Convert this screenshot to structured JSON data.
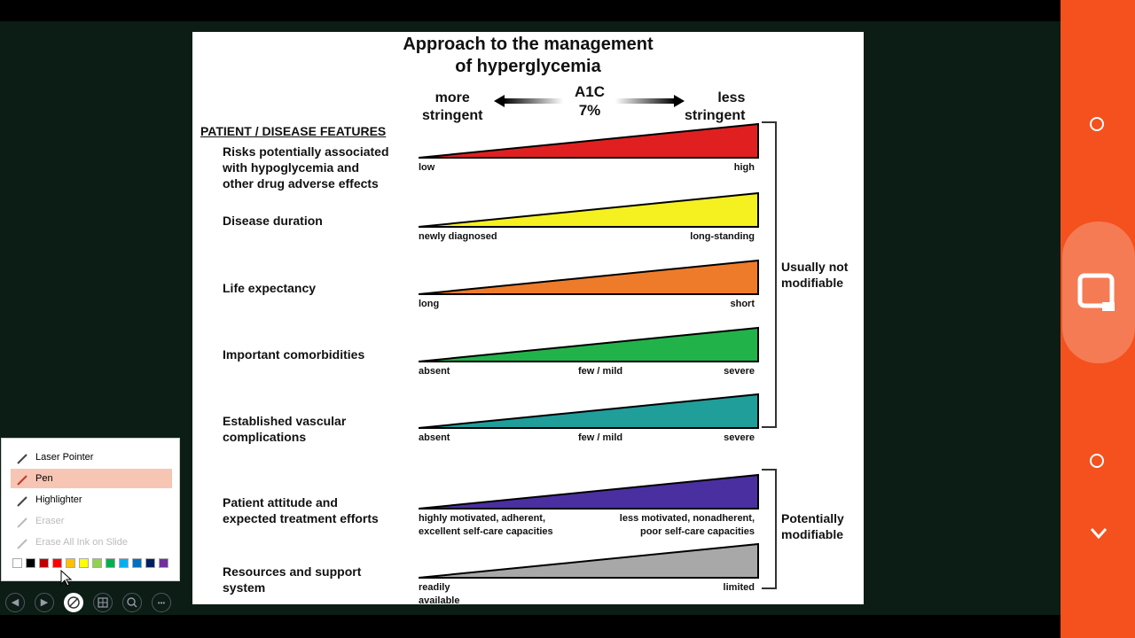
{
  "slide": {
    "title_line1": "Approach to the management",
    "title_line2": "of hyperglycemia",
    "more_line1": "more",
    "more_line2": "stringent",
    "less_line1": "less",
    "less_line2": "stringent",
    "a1c_label": "A1C",
    "a1c_value": "7%",
    "features_header": "PATIENT / DISEASE FEATURES",
    "features": [
      {
        "name_lines": [
          "Risks potentially associated",
          "with hypoglycemia and",
          "other drug adverse effects"
        ],
        "color": "#e02020",
        "left": "low",
        "mid": "",
        "right": "high"
      },
      {
        "name_lines": [
          "Disease duration"
        ],
        "color": "#f5f020",
        "left": "newly diagnosed",
        "mid": "",
        "right": "long-standing"
      },
      {
        "name_lines": [
          "Life expectancy"
        ],
        "color": "#ee7b2a",
        "left": "long",
        "mid": "",
        "right": "short"
      },
      {
        "name_lines": [
          "Important comorbidities"
        ],
        "color": "#22b24a",
        "left": "absent",
        "mid": "few / mild",
        "right": "severe"
      },
      {
        "name_lines": [
          "Established vascular",
          "complications"
        ],
        "color": "#1f9e9a",
        "left": "absent",
        "mid": "few / mild",
        "right": "severe"
      },
      {
        "name_lines": [
          "Patient attitude and",
          "expected treatment efforts"
        ],
        "color": "#4a2fa0",
        "left": "highly motivated, adherent,",
        "left2": "excellent self-care capacities",
        "right": "less motivated, nonadherent,",
        "right2": "poor self-care capacities"
      },
      {
        "name_lines": [
          "Resources and support",
          "system"
        ],
        "color": "#a8a8a8",
        "left": "readily",
        "left2": "available",
        "right": "limited"
      }
    ],
    "usually_not_line1": "Usually not",
    "usually_not_line2": "modifiable",
    "potentially_line1": "Potentially",
    "potentially_line2": "modifiable"
  },
  "pen_menu": {
    "items": [
      {
        "label": "Laser Pointer",
        "icon": "laser-pointer-icon"
      },
      {
        "label": "Pen",
        "icon": "pen-icon"
      },
      {
        "label": "Highlighter",
        "icon": "highlighter-icon"
      },
      {
        "label": "Eraser",
        "icon": "eraser-icon"
      },
      {
        "label": "Erase All Ink on Slide",
        "icon": "erase-all-icon"
      }
    ],
    "selected": "Pen",
    "colors": [
      "#ffffff",
      "#000000",
      "#c00000",
      "#ff0000",
      "#ffc000",
      "#ffff00",
      "#92d050",
      "#00b050",
      "#00b0f0",
      "#0070c0",
      "#002060",
      "#7030a0"
    ]
  },
  "bottom_nav": {
    "prev": "◀",
    "next": "▶",
    "more": "•••"
  }
}
